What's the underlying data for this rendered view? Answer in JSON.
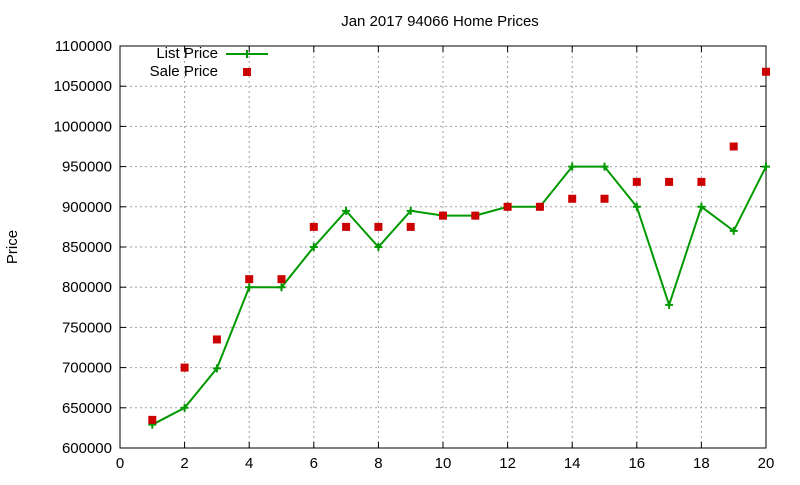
{
  "chart_data": {
    "type": "line",
    "title": "Jan 2017 94066 Home Prices",
    "xlabel": "",
    "ylabel": "Price",
    "xlim": [
      0,
      20
    ],
    "ylim": [
      600000,
      1100000
    ],
    "grid": true,
    "legend_position": "top-left",
    "x_ticks": [
      0,
      2,
      4,
      6,
      8,
      10,
      12,
      14,
      16,
      18,
      20
    ],
    "y_ticks": [
      600000,
      650000,
      700000,
      750000,
      800000,
      850000,
      900000,
      950000,
      1000000,
      1050000,
      1100000
    ],
    "x": [
      1,
      2,
      3,
      4,
      5,
      6,
      7,
      8,
      9,
      10,
      11,
      12,
      13,
      14,
      15,
      16,
      17,
      18,
      19,
      20
    ],
    "series": [
      {
        "name": "List Price",
        "style": "linespoints",
        "color": "#009900",
        "marker": "plus",
        "values": [
          629000,
          650000,
          699000,
          800000,
          800000,
          850000,
          895000,
          850000,
          895000,
          889000,
          889000,
          900000,
          900000,
          950000,
          950000,
          900000,
          778000,
          900000,
          870000,
          950000
        ]
      },
      {
        "name": "Sale Price",
        "style": "points",
        "color": "#cc0000",
        "marker": "square",
        "values": [
          635000,
          700000,
          735000,
          810000,
          810000,
          875000,
          875000,
          875000,
          875000,
          889000,
          889000,
          900000,
          900000,
          910000,
          910000,
          931000,
          931000,
          931000,
          975000,
          1068000
        ]
      }
    ]
  }
}
